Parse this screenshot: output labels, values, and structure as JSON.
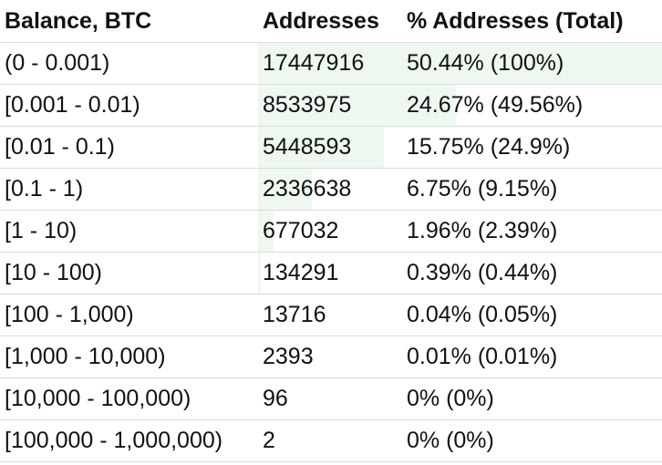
{
  "table": {
    "headers": {
      "balance": "Balance, BTC",
      "addresses": "Addresses",
      "percent": "% Addresses (Total)"
    },
    "bar_color": "#eef8f1",
    "rows": [
      {
        "range": "(0 - 0.001)",
        "addresses": "17447916",
        "percent": "50.44% (100%)",
        "share": 50.44
      },
      {
        "range": "[0.001 - 0.01)",
        "addresses": "8533975",
        "percent": "24.67% (49.56%)",
        "share": 24.67
      },
      {
        "range": "[0.01 - 0.1)",
        "addresses": "5448593",
        "percent": "15.75% (24.9%)",
        "share": 15.75
      },
      {
        "range": "[0.1 - 1)",
        "addresses": "2336638",
        "percent": "6.75% (9.15%)",
        "share": 6.75
      },
      {
        "range": "[1 - 10)",
        "addresses": "677032",
        "percent": "1.96% (2.39%)",
        "share": 1.96
      },
      {
        "range": "[10 - 100)",
        "addresses": "134291",
        "percent": "0.39% (0.44%)",
        "share": 0.39
      },
      {
        "range": "[100 - 1,000)",
        "addresses": "13716",
        "percent": "0.04% (0.05%)",
        "share": 0.04
      },
      {
        "range": "[1,000 - 10,000)",
        "addresses": "2393",
        "percent": "0.01% (0.01%)",
        "share": 0.01
      },
      {
        "range": "[10,000 - 100,000)",
        "addresses": "96",
        "percent": "0% (0%)",
        "share": 0
      },
      {
        "range": "[100,000 - 1,000,000)",
        "addresses": "2",
        "percent": "0% (0%)",
        "share": 0
      }
    ]
  }
}
